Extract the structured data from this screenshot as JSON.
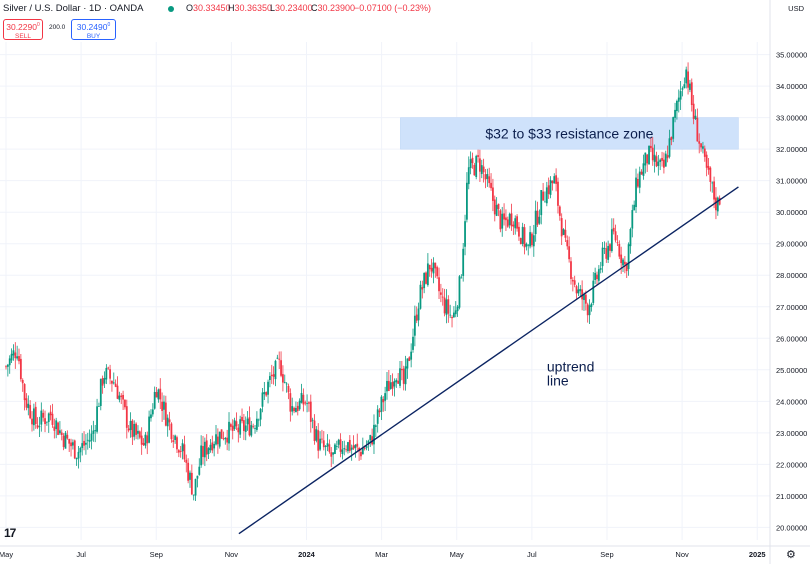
{
  "header": {
    "title": "Silver / U.S. Dollar · 1D · OANDA",
    "ohlc": [
      {
        "k": "O",
        "v": "30.33450"
      },
      {
        "k": "H",
        "v": "30.36350"
      },
      {
        "k": "L",
        "v": "30.23400"
      },
      {
        "k": "C",
        "v": "30.23900"
      }
    ],
    "change": "−0.07100 (−0.23%)"
  },
  "trade": {
    "sell_price": "30.2290",
    "sell_sup": "0",
    "sell_label": "SELL",
    "spread": "200.0",
    "buy_price": "30.2490",
    "buy_sup": "0",
    "buy_label": "BUY"
  },
  "currency": "USD",
  "logo": "17",
  "colors": {
    "up": "#089981",
    "down": "#f23645",
    "line": "#0b2462",
    "zone": "#cfe2fb",
    "axis_text": "#131722"
  },
  "chart_data": {
    "type": "candlestick",
    "symbol": "Silver / U.S. Dollar",
    "interval": "1D",
    "source": "OANDA",
    "ylim": [
      19.6,
      35.4
    ],
    "x_domain_months": [
      0,
      20.5
    ],
    "x_tick_labels": [
      {
        "label": "May",
        "m": 0,
        "bold": false
      },
      {
        "label": "Jul",
        "m": 2,
        "bold": false
      },
      {
        "label": "Sep",
        "m": 4,
        "bold": false
      },
      {
        "label": "Nov",
        "m": 6,
        "bold": false
      },
      {
        "label": "2024",
        "m": 8,
        "bold": true
      },
      {
        "label": "Mar",
        "m": 10,
        "bold": false
      },
      {
        "label": "May",
        "m": 12,
        "bold": false
      },
      {
        "label": "Jul",
        "m": 14,
        "bold": false
      },
      {
        "label": "Sep",
        "m": 16,
        "bold": false
      },
      {
        "label": "Nov",
        "m": 18,
        "bold": false
      },
      {
        "label": "2025",
        "m": 20,
        "bold": true
      }
    ],
    "y_ticks": [
      "35.00000",
      "34.00000",
      "33.00000",
      "32.00000",
      "31.00000",
      "30.00000",
      "29.00000",
      "28.00000",
      "27.00000",
      "26.00000",
      "25.00000",
      "24.00000",
      "23.00000",
      "22.00000",
      "21.00000",
      "20.00000"
    ],
    "current_price": 30.239,
    "price_path": [
      [
        0.0,
        25.1
      ],
      [
        0.3,
        25.7
      ],
      [
        0.5,
        24.1
      ],
      [
        0.8,
        23.3
      ],
      [
        1.2,
        23.6
      ],
      [
        1.5,
        22.9
      ],
      [
        1.9,
        22.4
      ],
      [
        2.3,
        22.9
      ],
      [
        2.6,
        24.9
      ],
      [
        2.9,
        24.6
      ],
      [
        3.3,
        23.1
      ],
      [
        3.7,
        22.6
      ],
      [
        4.0,
        24.5
      ],
      [
        4.3,
        23.4
      ],
      [
        4.7,
        22.4
      ],
      [
        5.0,
        21.1
      ],
      [
        5.2,
        22.3
      ],
      [
        5.5,
        22.8
      ],
      [
        5.8,
        23.0
      ],
      [
        6.2,
        23.1
      ],
      [
        6.6,
        23.3
      ],
      [
        7.0,
        24.6
      ],
      [
        7.3,
        25.2
      ],
      [
        7.6,
        23.8
      ],
      [
        8.0,
        24.0
      ],
      [
        8.3,
        22.7
      ],
      [
        8.7,
        22.2
      ],
      [
        9.0,
        22.7
      ],
      [
        9.4,
        22.4
      ],
      [
        9.7,
        22.7
      ],
      [
        10.1,
        24.3
      ],
      [
        10.4,
        25.0
      ],
      [
        10.6,
        24.5
      ],
      [
        11.0,
        27.3
      ],
      [
        11.3,
        28.4
      ],
      [
        11.6,
        27.2
      ],
      [
        11.9,
        26.6
      ],
      [
        12.1,
        27.8
      ],
      [
        12.3,
        31.3
      ],
      [
        12.6,
        31.6
      ],
      [
        12.9,
        30.6
      ],
      [
        13.2,
        29.6
      ],
      [
        13.5,
        29.9
      ],
      [
        13.9,
        28.8
      ],
      [
        14.3,
        30.6
      ],
      [
        14.6,
        31.0
      ],
      [
        14.9,
        28.8
      ],
      [
        15.2,
        27.5
      ],
      [
        15.5,
        27.0
      ],
      [
        15.9,
        28.6
      ],
      [
        16.2,
        29.3
      ],
      [
        16.5,
        28.2
      ],
      [
        16.8,
        31.0
      ],
      [
        17.1,
        31.8
      ],
      [
        17.5,
        31.3
      ],
      [
        17.8,
        33.0
      ],
      [
        18.1,
        34.6
      ],
      [
        18.3,
        33.1
      ],
      [
        18.6,
        31.5
      ],
      [
        18.9,
        30.3
      ],
      [
        19.0,
        30.24
      ]
    ],
    "annotations": [
      {
        "type": "zone",
        "label": "$32 to $33 resistance zone",
        "y_from": 32.0,
        "y_to": 33.0,
        "m_from": 10.5,
        "m_to": 19.5
      },
      {
        "type": "trendline",
        "label": "uptrend line",
        "label_line1": "uptrend",
        "label_line2": "line",
        "points": [
          [
            6.2,
            19.8
          ],
          [
            19.5,
            30.8
          ]
        ]
      }
    ]
  }
}
